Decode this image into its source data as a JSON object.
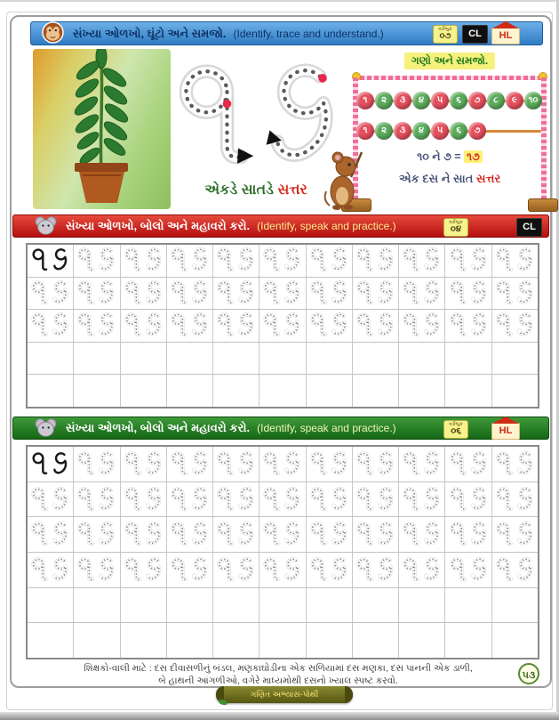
{
  "section1": {
    "title_gu": "સંખ્યા ઓળખો, ઘૂંટો અને સમજો.",
    "title_en": "(Identify, trace and understand.)",
    "badge_workbook_label": "વર્કબુક",
    "badge_workbook_value": "૦૭",
    "badge_cl": "CL",
    "badge_hl": "HL",
    "trace_numeral": "૧૭",
    "caption_prefix": "એકડે સાતડે",
    "caption_word": "સત્તર"
  },
  "abacus": {
    "label": "ગણો અને સમજો.",
    "row1": [
      "૧",
      "૨",
      "૩",
      "૪",
      "૫",
      "૬",
      "૭",
      "૮",
      "૯",
      "૧૦"
    ],
    "row2": [
      "૧",
      "૨",
      "૩",
      "૪",
      "૫",
      "૬",
      "૭"
    ],
    "equation_prefix": "૧૦ ને ૭ =",
    "equation_result": "૧૭",
    "sentence_prefix": "એક દસ ને સાત",
    "sentence_word": "સત્તર"
  },
  "section2": {
    "title_gu": "સંખ્યા ઓળખો, બોલો અને મહાવરો કરો.",
    "title_en": "(Identify, speak and practice.)",
    "badge_workbook_label": "વર્કબુક",
    "badge_workbook_value": "૦૪",
    "badge_cl": "CL",
    "grid": {
      "columns": 11,
      "numeral_rows": 3,
      "empty_rows": 2,
      "numeral": "૧૭"
    }
  },
  "section3": {
    "title_gu": "સંખ્યા ઓળખો, બોલો અને મહાવરો કરો.",
    "title_en": "(Identify, speak and practice.)",
    "badge_workbook_label": "વર્કબુક",
    "badge_workbook_value": "૦૬",
    "badge_hl": "HL",
    "grid": {
      "columns": 11,
      "numeral_rows": 4,
      "empty_rows": 2,
      "numeral": "૧૭"
    }
  },
  "footer": {
    "line1": "શિક્ષકો-વાલી માટે : દસ દીવાસળીનું બંડલ, મણકાઘોડીના એક સળિયામાં દસ મણકા, દસ પાનની એક ડાળી,",
    "line2": "બે હાથની આંગળીઓ, વગેરે માધ્યમોથી દસનો ખ્યાલ સ્પષ્ટ કરવો.",
    "page_number": "૫૩",
    "ribbon": "ગણિત અભ્યાસ-પોથી"
  },
  "colors": {
    "bar1_blue": "#3c87cf",
    "bar2_red": "#cf1f1f",
    "bar3_green": "#1f7a1f",
    "bead_red": "#e4505e",
    "bead_green": "#5cab5c",
    "highlight_yellow": "#f6f17c",
    "accent_red": "#d6281e"
  }
}
